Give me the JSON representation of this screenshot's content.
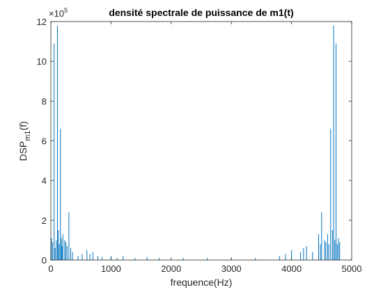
{
  "chart_data": {
    "type": "bar",
    "title": "densité spectrale de puissance de m1(t)",
    "xlabel": "frequence(Hz)",
    "ylabel_main": "DSP",
    "ylabel_sub": "m1",
    "ylabel_tail": "(f)",
    "y_exponent_base": "×10",
    "y_exponent_power": "5",
    "xlim": [
      0,
      5000
    ],
    "ylim": [
      0,
      1200000
    ],
    "xticks": [
      0,
      1000,
      2000,
      3000,
      4000,
      5000
    ],
    "xtick_labels": [
      "0",
      "1000",
      "2000",
      "3000",
      "4000",
      "5000"
    ],
    "yticks": [
      0,
      200000,
      400000,
      600000,
      800000,
      1000000,
      1200000
    ],
    "ytick_labels": [
      "0",
      "2",
      "4",
      "6",
      "8",
      "10",
      "12"
    ],
    "series_color": "#0072bd",
    "grid": false,
    "x": [
      10,
      30,
      55,
      70,
      90,
      110,
      125,
      140,
      160,
      175,
      185,
      200,
      230,
      250,
      270,
      300,
      330,
      360,
      450,
      520,
      600,
      650,
      700,
      780,
      850,
      1000,
      1100,
      1200,
      1400,
      1600,
      1800,
      2200,
      2600,
      3000,
      3400,
      3800,
      3900,
      4000,
      4150,
      4200,
      4250,
      4350,
      4450,
      4480,
      4500,
      4550,
      4570,
      4600,
      4620,
      4650,
      4680,
      4700,
      4720,
      4740,
      4760,
      4780,
      4800
    ],
    "values": [
      110000,
      90000,
      1090000,
      60000,
      100000,
      1180000,
      150000,
      80000,
      660000,
      110000,
      70000,
      130000,
      100000,
      90000,
      70000,
      240000,
      60000,
      40000,
      20000,
      30000,
      50000,
      30000,
      40000,
      20000,
      15000,
      20000,
      10000,
      20000,
      10000,
      15000,
      10000,
      10000,
      10000,
      10000,
      10000,
      20000,
      30000,
      50000,
      40000,
      60000,
      70000,
      40000,
      130000,
      80000,
      240000,
      100000,
      90000,
      130000,
      80000,
      660000,
      150000,
      1180000,
      100000,
      1090000,
      80000,
      110000,
      90000
    ]
  }
}
